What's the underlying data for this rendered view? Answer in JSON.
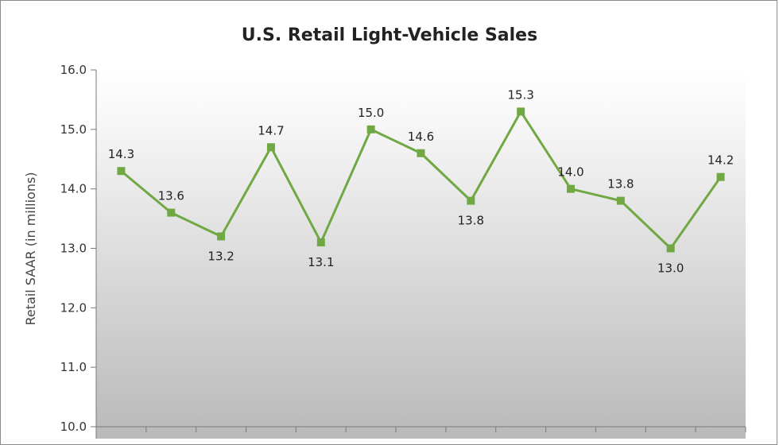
{
  "chart_data": {
    "type": "line",
    "title": "U.S. Retail Light-Vehicle Sales",
    "ylabel": "Retail SAAR (in millions)",
    "xlabel": "",
    "ylim": [
      10.0,
      16.0
    ],
    "y_ticks": [
      "10.0",
      "11.0",
      "12.0",
      "13.0",
      "14.0",
      "15.0",
      "16.0"
    ],
    "grid": false,
    "legend": "none",
    "line_color": "#70a844",
    "values": [
      14.3,
      13.6,
      13.2,
      14.7,
      13.1,
      15.0,
      14.6,
      13.8,
      15.3,
      14.0,
      13.8,
      13.0,
      14.2
    ],
    "labels": [
      "14.3",
      "13.6",
      "13.2",
      "14.7",
      "13.1",
      "15.0",
      "14.6",
      "13.8",
      "15.3",
      "14.0",
      "13.8",
      "13.0",
      "14.2"
    ]
  }
}
